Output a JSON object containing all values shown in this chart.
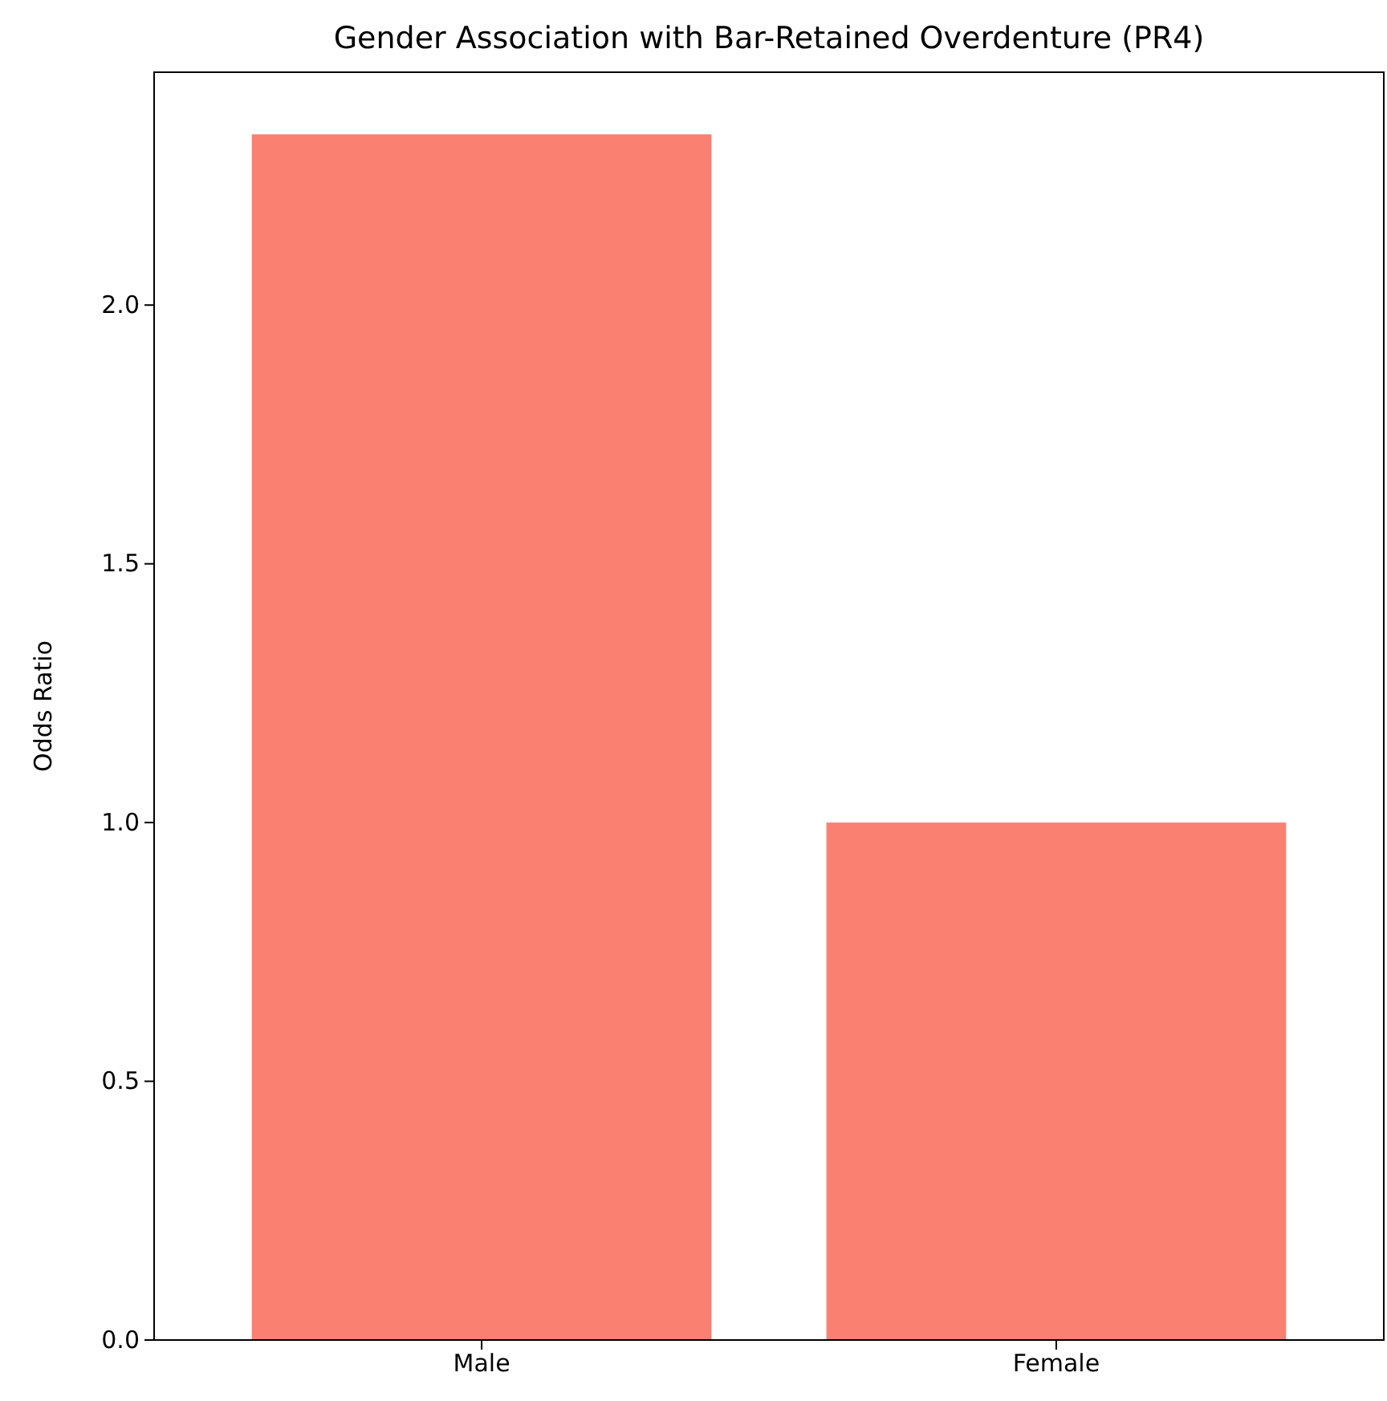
{
  "chart_data": {
    "type": "bar",
    "title": "Gender Association with Bar-Retained Overdenture (PR4)",
    "ylabel": "Odds Ratio",
    "categories": [
      "Male",
      "Female"
    ],
    "values": [
      2.33,
      1.0
    ],
    "color": "#fa8072",
    "ylim": [
      0,
      2.45
    ],
    "yticks": [
      {
        "value": 0,
        "label": "0.0"
      },
      {
        "value": 0.5,
        "label": "0.5"
      },
      {
        "value": 1,
        "label": "1.0"
      },
      {
        "value": 1.5,
        "label": "1.5"
      },
      {
        "value": 2,
        "label": "2.0"
      }
    ],
    "grid": false
  }
}
